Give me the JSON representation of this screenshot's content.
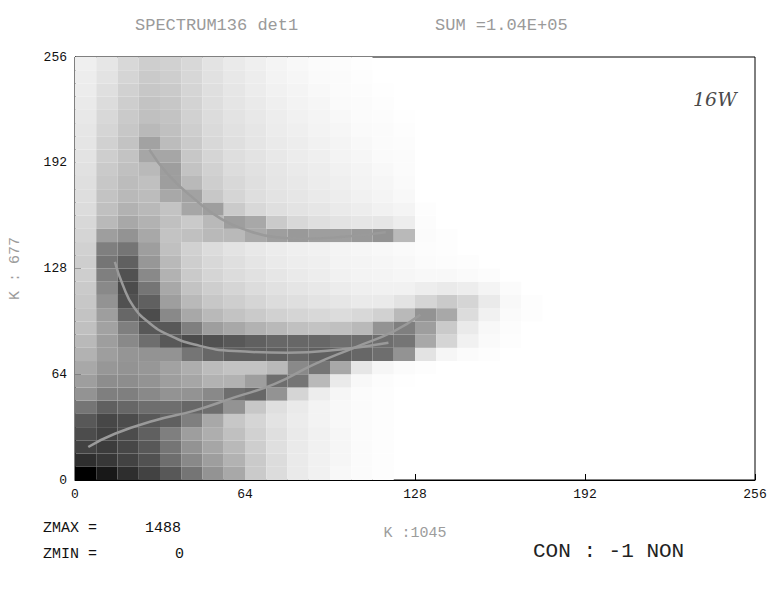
{
  "chart_data": {
    "type": "heatmap",
    "title": "SPECTRUM136 det1",
    "subtitle": "SUM =1.04E+05",
    "xlabel": "K :1045",
    "ylabel": "K : 677",
    "annotations": [
      "16W",
      "CON : -1 NON"
    ],
    "zmax_label": "ZMAX =",
    "zmin_label": "ZMIN =",
    "zlim": [
      0,
      1488
    ],
    "xlim": [
      0,
      256
    ],
    "ylim": [
      0,
      256
    ],
    "xticks": [
      0,
      64,
      128,
      192,
      256
    ],
    "yticks": [
      0,
      64,
      128,
      192,
      256
    ],
    "grid": false,
    "bin": 8,
    "counts": [
      [
        1488,
        1300,
        1100,
        900,
        700,
        500,
        350,
        250,
        150,
        100,
        60,
        40,
        20,
        10,
        5
      ],
      [
        1100,
        1000,
        900,
        750,
        550,
        400,
        300,
        220,
        150,
        100,
        60,
        40,
        25,
        10,
        5
      ],
      [
        900,
        950,
        850,
        700,
        500,
        350,
        260,
        200,
        140,
        90,
        60,
        40,
        25,
        10,
        5
      ],
      [
        800,
        900,
        800,
        650,
        450,
        300,
        230,
        180,
        130,
        90,
        60,
        40,
        25,
        12,
        5
      ],
      [
        700,
        850,
        800,
        700,
        650,
        450,
        250,
        160,
        120,
        80,
        55,
        35,
        20,
        10,
        5
      ],
      [
        500,
        650,
        600,
        550,
        550,
        600,
        550,
        350,
        160,
        90,
        60,
        35,
        20,
        10,
        5
      ],
      [
        350,
        450,
        450,
        400,
        350,
        350,
        400,
        550,
        600,
        350,
        120,
        50,
        25,
        12,
        5
      ],
      [
        300,
        380,
        380,
        350,
        300,
        260,
        220,
        220,
        300,
        550,
        500,
        200,
        60,
        20,
        8,
        4
      ],
      [
        250,
        330,
        350,
        330,
        280,
        230,
        190,
        170,
        170,
        200,
        400,
        500,
        250,
        70,
        25,
        10,
        5
      ],
      [
        220,
        300,
        340,
        350,
        350,
        500,
        600,
        650,
        650,
        650,
        600,
        650,
        650,
        600,
        550,
        350,
        80,
        25,
        10,
        5
      ],
      [
        200,
        300,
        400,
        550,
        700,
        800,
        750,
        700,
        650,
        600,
        600,
        600,
        550,
        550,
        550,
        500,
        250,
        120,
        40,
        15,
        5
      ],
      [
        180,
        280,
        450,
        700,
        700,
        450,
        300,
        250,
        220,
        200,
        180,
        170,
        180,
        200,
        350,
        450,
        300,
        150,
        60,
        20,
        8
      ],
      [
        170,
        300,
        600,
        800,
        400,
        250,
        200,
        170,
        150,
        130,
        120,
        110,
        100,
        110,
        130,
        200,
        350,
        250,
        100,
        40,
        15,
        5
      ],
      [
        160,
        350,
        750,
        650,
        300,
        200,
        160,
        140,
        120,
        100,
        90,
        80,
        70,
        60,
        60,
        80,
        120,
        150,
        120,
        60,
        20,
        5
      ],
      [
        150,
        400,
        800,
        500,
        250,
        170,
        140,
        120,
        100,
        85,
        75,
        65,
        55,
        45,
        40,
        40,
        50,
        60,
        50,
        30,
        10
      ],
      [
        140,
        450,
        750,
        400,
        220,
        150,
        120,
        100,
        85,
        70,
        60,
        50,
        40,
        35,
        30,
        25,
        20,
        20,
        15,
        8
      ],
      [
        140,
        500,
        650,
        330,
        200,
        140,
        110,
        90,
        75,
        60,
        50,
        45,
        35,
        30,
        25,
        20,
        12,
        8,
        5
      ],
      [
        130,
        450,
        500,
        300,
        180,
        130,
        100,
        80,
        65,
        55,
        45,
        40,
        30,
        25,
        20,
        15,
        8,
        5
      ],
      [
        120,
        300,
        350,
        250,
        170,
        180,
        200,
        200,
        250,
        300,
        320,
        300,
        300,
        320,
        350,
        200,
        10,
        5
      ],
      [
        110,
        200,
        250,
        220,
        180,
        150,
        200,
        300,
        250,
        150,
        110,
        90,
        80,
        70,
        70,
        50,
        8
      ],
      [
        100,
        180,
        220,
        200,
        170,
        260,
        300,
        150,
        110,
        90,
        80,
        70,
        60,
        50,
        40,
        30,
        5
      ],
      [
        95,
        170,
        200,
        190,
        250,
        280,
        160,
        120,
        95,
        80,
        70,
        60,
        50,
        40,
        30,
        20
      ],
      [
        90,
        160,
        190,
        180,
        300,
        200,
        140,
        110,
        90,
        75,
        65,
        55,
        45,
        35,
        25,
        15
      ],
      [
        85,
        150,
        180,
        200,
        300,
        170,
        130,
        100,
        85,
        70,
        60,
        50,
        40,
        30,
        20,
        12
      ],
      [
        80,
        140,
        170,
        260,
        260,
        160,
        120,
        95,
        80,
        65,
        55,
        45,
        35,
        25,
        15,
        10
      ],
      [
        75,
        130,
        170,
        280,
        190,
        150,
        110,
        90,
        75,
        60,
        50,
        40,
        30,
        20,
        12,
        8
      ],
      [
        70,
        120,
        160,
        200,
        180,
        140,
        105,
        85,
        70,
        55,
        45,
        35,
        25,
        15,
        10,
        5
      ],
      [
        65,
        110,
        150,
        180,
        170,
        130,
        100,
        80,
        65,
        50,
        40,
        30,
        20,
        12,
        8,
        4
      ],
      [
        60,
        100,
        140,
        170,
        160,
        125,
        95,
        75,
        60,
        45,
        35,
        25,
        15,
        10,
        5
      ],
      [
        55,
        90,
        130,
        160,
        150,
        120,
        90,
        70,
        55,
        40,
        30,
        20,
        12,
        8,
        4
      ],
      [
        50,
        80,
        120,
        150,
        140,
        115,
        85,
        65,
        50,
        35,
        25,
        15,
        10,
        5
      ],
      [
        45,
        70,
        110,
        140,
        130,
        110,
        80,
        60,
        45,
        30,
        20,
        12,
        8,
        4
      ]
    ],
    "curves": [
      {
        "color": "#9a9a9a",
        "x": [
          28,
          35,
          45,
          55,
          65,
          75,
          85,
          100,
          117
        ],
        "y": [
          200,
          185,
          170,
          158,
          151,
          147,
          146,
          147,
          150
        ]
      },
      {
        "color": "#9a9a9a",
        "x": [
          15,
          18,
          22,
          28,
          35,
          45,
          60,
          80,
          100,
          118
        ],
        "y": [
          132,
          118,
          105,
          95,
          88,
          82,
          78,
          77,
          79,
          83
        ]
      },
      {
        "color": "#9a9a9a",
        "x": [
          5,
          15,
          30,
          45,
          60,
          75,
          90,
          105,
          120,
          130
        ],
        "y": [
          20,
          28,
          36,
          42,
          50,
          58,
          70,
          80,
          90,
          100
        ]
      }
    ]
  }
}
